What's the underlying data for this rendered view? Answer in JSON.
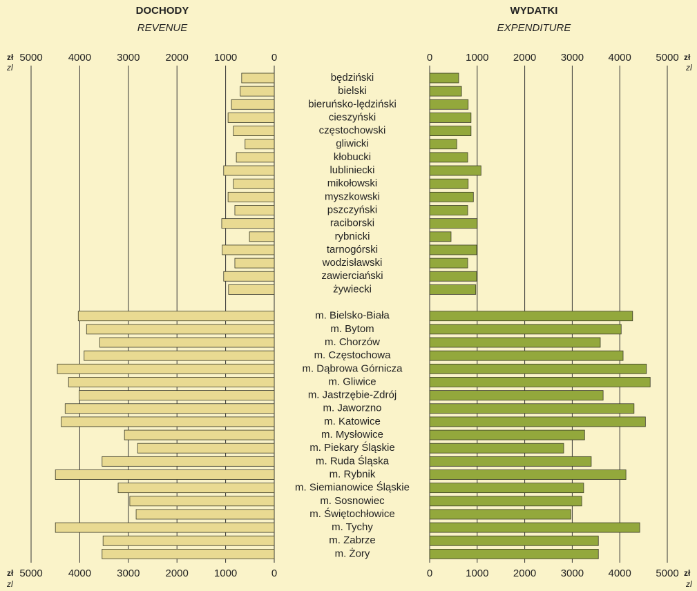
{
  "chart_data": {
    "type": "bar",
    "orientation": "horizontal",
    "unit": "zł",
    "unit_alt": "zl",
    "categories": [
      "będziński",
      "bielski",
      "bieruńsko-lędziński",
      "cieszyński",
      "częstochowski",
      "gliwicki",
      "kłobucki",
      "lubliniecki",
      "mikołowski",
      "myszkowski",
      "pszczyński",
      "raciborski",
      "rybnicki",
      "tarnogórski",
      "wodzisławski",
      "zawierciański",
      "żywiecki",
      null,
      "m. Bielsko-Biała",
      "m. Bytom",
      "m. Chorzów",
      "m. Częstochowa",
      "m. Dąbrowa Górnicza",
      "m. Gliwice",
      "m. Jastrzębie-Zdrój",
      "m. Jaworzno",
      "m. Katowice",
      "m. Mysłowice",
      "m. Piekary Śląskie",
      "m. Ruda Śląska",
      "m. Rybnik",
      "m. Siemianowice Śląskie",
      "m. Sosnowiec",
      "m. Świętochłowice",
      "m. Tychy",
      "m. Zabrze",
      "m. Żory"
    ],
    "series": [
      {
        "name": "DOCHODY",
        "subtitle": "REVENUE",
        "color": "#e9da92",
        "xlim": [
          0,
          5000
        ],
        "xticks": [
          0,
          1000,
          2000,
          3000,
          4000,
          5000
        ],
        "values": [
          670,
          700,
          880,
          950,
          840,
          600,
          780,
          1040,
          840,
          950,
          810,
          1080,
          510,
          1070,
          810,
          1040,
          940,
          null,
          4030,
          3860,
          3590,
          3910,
          4460,
          4230,
          4010,
          4300,
          4380,
          3080,
          2810,
          3540,
          4500,
          3210,
          2970,
          2840,
          4500,
          3520,
          3540
        ]
      },
      {
        "name": "WYDATKI",
        "subtitle": "EXPENDITURE",
        "color": "#93a83c",
        "xlim": [
          0,
          5000
        ],
        "xticks": [
          0,
          1000,
          2000,
          3000,
          4000,
          5000
        ],
        "values": [
          610,
          670,
          810,
          870,
          870,
          570,
          800,
          1080,
          810,
          920,
          800,
          1000,
          450,
          990,
          800,
          990,
          970,
          null,
          4270,
          4030,
          3590,
          4070,
          4560,
          4640,
          3650,
          4300,
          4540,
          3260,
          2820,
          3400,
          4130,
          3240,
          3200,
          2970,
          4420,
          3550,
          3550
        ]
      }
    ]
  }
}
